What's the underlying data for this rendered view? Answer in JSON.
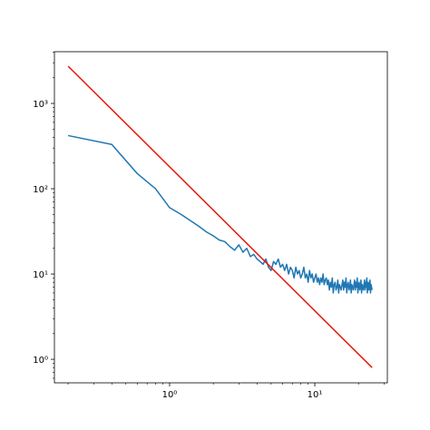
{
  "chart_data": {
    "type": "line",
    "log_x": true,
    "log_y": true,
    "xlim": [
      0.161,
      31.6
    ],
    "ylim": [
      0.53,
      4040
    ],
    "xticks": [
      {
        "value": 1,
        "label": "10⁰"
      },
      {
        "value": 10,
        "label": "10¹"
      }
    ],
    "yticks": [
      {
        "value": 1,
        "label": "10⁰"
      },
      {
        "value": 10,
        "label": "10¹"
      },
      {
        "value": 100,
        "label": "10²"
      },
      {
        "value": 1000,
        "label": "10³"
      }
    ],
    "series": [
      {
        "color": "#1f77b4",
        "x": [
          0.2,
          0.4,
          0.6,
          0.8,
          1.0,
          1.2,
          1.4,
          1.6,
          1.8,
          2.0,
          2.2,
          2.4,
          2.6,
          2.8,
          3.0,
          3.2,
          3.4,
          3.6,
          3.8,
          4.0,
          4.2,
          4.4,
          4.6,
          4.8,
          5.0,
          5.2,
          5.4,
          5.6,
          5.8,
          6.0,
          6.2,
          6.4,
          6.6,
          6.8,
          7.0,
          7.2,
          7.4,
          7.6,
          7.8,
          8.0,
          8.2,
          8.4,
          8.6,
          8.8,
          9.0,
          9.2,
          9.4,
          9.6,
          9.8,
          10.0,
          10.2,
          10.4,
          10.6,
          10.8,
          11.0,
          11.2,
          11.4,
          11.6,
          11.8,
          12.0,
          12.2,
          12.4,
          12.6,
          12.8,
          13.0,
          13.2,
          13.4,
          13.6,
          13.8,
          14.0,
          14.2,
          14.4,
          14.6,
          14.8,
          15.0,
          15.2,
          15.4,
          15.6,
          15.8,
          16.0,
          16.2,
          16.4,
          16.6,
          16.8,
          17.0,
          17.2,
          17.4,
          17.6,
          17.8,
          18.0,
          18.2,
          18.4,
          18.6,
          18.8,
          19.0,
          19.2,
          19.4,
          19.6,
          19.8,
          20.0,
          20.2,
          20.4,
          20.6,
          20.8,
          21.0,
          21.2,
          21.4,
          21.6,
          21.8,
          22.0,
          22.2,
          22.4,
          22.6,
          22.8,
          23.0,
          23.2,
          23.4,
          23.6,
          23.8,
          24.0,
          24.2,
          24.4,
          24.6,
          24.8
        ],
        "values": [
          420,
          330,
          150,
          100,
          60,
          50,
          42,
          36,
          31,
          28,
          25,
          24,
          21,
          19,
          22,
          18,
          20,
          16,
          17,
          15,
          14,
          13,
          15,
          12,
          11,
          14,
          13,
          15,
          12,
          13,
          11,
          13,
          10,
          12,
          11,
          9,
          12,
          10,
          11,
          9,
          10,
          12,
          9,
          10,
          8,
          11,
          9,
          10,
          8,
          9,
          10,
          8,
          9,
          7.5,
          9,
          8,
          10,
          7.5,
          8.5,
          9,
          7.5,
          8.5,
          6.5,
          8,
          7,
          9,
          6,
          7.5,
          8,
          6.5,
          7,
          8.5,
          6,
          7.5,
          7,
          6.5,
          7.5,
          8.5,
          6.5,
          8,
          7,
          9,
          6,
          7.5,
          8,
          6.5,
          7,
          8.5,
          6,
          7.5,
          7,
          6.5,
          7.5,
          8.5,
          6.5,
          8,
          7,
          9,
          6,
          7.5,
          8,
          6.5,
          7,
          8.5,
          6,
          7.5,
          7,
          6.5,
          7.5,
          8.5,
          6.5,
          8,
          7,
          9,
          6,
          7.5,
          8,
          6.5,
          7,
          8.5,
          6,
          7.5,
          7,
          6.5
        ]
      },
      {
        "color": "#e8160c",
        "x": [
          0.2,
          24.8
        ],
        "values": [
          2730,
          0.8
        ]
      }
    ]
  }
}
